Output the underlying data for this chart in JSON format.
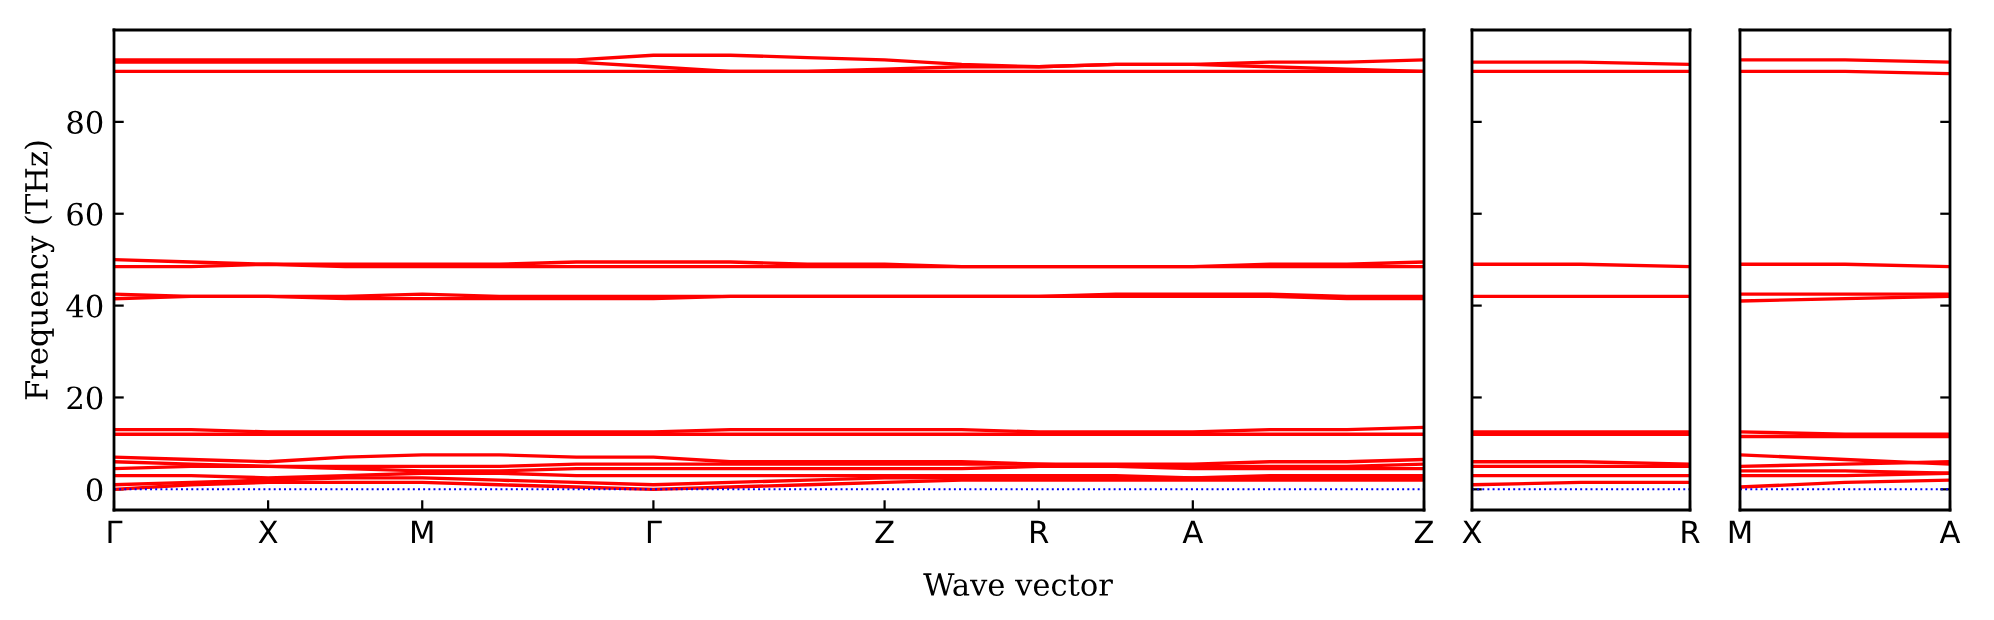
{
  "chart_data": [
    {
      "type": "line",
      "xlabel": "Wave vector",
      "ylabel": "Frequency (THz)",
      "ylim": [
        -4.5,
        100
      ],
      "categories": [
        "Γ",
        null,
        "X",
        null,
        "M",
        null,
        null,
        "Γ",
        null,
        null,
        "Z",
        null,
        "R",
        null,
        "A",
        null,
        null,
        "Z"
      ],
      "yticks": [
        0,
        20,
        40,
        60,
        80
      ],
      "line_style": "solid",
      "legend": false,
      "grid": false,
      "ref_lines": [
        {
          "axis": "y",
          "value": 0,
          "color": "#0000ff",
          "line_style": "dotted"
        }
      ],
      "series": [
        {
          "color": "#ff0000",
          "values": [
            93.5,
            93.5,
            93.5,
            93.5,
            93.5,
            93.5,
            93.5,
            94.5,
            94.5,
            94,
            93.5,
            92.5,
            92,
            92.5,
            92.5,
            93,
            93,
            93.5
          ]
        },
        {
          "color": "#ff0000",
          "values": [
            93,
            93,
            93,
            93,
            93,
            93,
            93,
            92,
            91,
            91,
            91.5,
            92,
            92,
            92.5,
            92.5,
            92,
            91.5,
            91
          ]
        },
        {
          "color": "#ff0000",
          "values": [
            91,
            91,
            91,
            91,
            91,
            91,
            91,
            91,
            91,
            91,
            91,
            91,
            91,
            91,
            91,
            91,
            91,
            91
          ]
        },
        {
          "color": "#ff0000",
          "values": [
            50,
            49.5,
            49,
            49,
            49,
            49,
            49.5,
            49.5,
            49.5,
            49,
            49,
            48.5,
            48.5,
            48.5,
            48.5,
            49,
            49,
            49.5
          ]
        },
        {
          "color": "#ff0000",
          "values": [
            48.5,
            48.5,
            49,
            48.5,
            48.5,
            48.5,
            48.5,
            48.5,
            48.5,
            48.5,
            48.5,
            48.5,
            48.5,
            48.5,
            48.5,
            48.5,
            48.5,
            48.5
          ]
        },
        {
          "color": "#ff0000",
          "values": [
            42.5,
            42,
            42,
            42,
            42.5,
            42,
            42,
            42,
            42,
            42,
            42,
            42,
            42,
            42.5,
            42.5,
            42.5,
            42,
            42
          ]
        },
        {
          "color": "#ff0000",
          "values": [
            41.5,
            42,
            42,
            41.5,
            41.5,
            41.5,
            41.5,
            41.5,
            42,
            42,
            42,
            42,
            42,
            42,
            42,
            42,
            41.5,
            41.5
          ]
        },
        {
          "color": "#ff0000",
          "values": [
            13,
            13,
            12.5,
            12.5,
            12.5,
            12.5,
            12.5,
            12.5,
            13,
            13,
            13,
            13,
            12.5,
            12.5,
            12.5,
            13,
            13,
            13.5
          ]
        },
        {
          "color": "#ff0000",
          "values": [
            12,
            12,
            12,
            12,
            12,
            12,
            12,
            12,
            12,
            12,
            12,
            12,
            12,
            12,
            12,
            12,
            12,
            12
          ]
        },
        {
          "color": "#ff0000",
          "values": [
            7,
            6.5,
            6,
            7,
            7.5,
            7.5,
            7,
            7,
            6,
            6,
            6,
            6,
            5.5,
            5.5,
            5.5,
            6,
            6,
            6.5
          ]
        },
        {
          "color": "#ff0000",
          "values": [
            6,
            5.5,
            5,
            5,
            5,
            5,
            5.5,
            5.5,
            5.5,
            5.5,
            5.5,
            5.5,
            5.5,
            5,
            5,
            5,
            5,
            5.5
          ]
        },
        {
          "color": "#ff0000",
          "values": [
            4.5,
            5,
            5,
            4.5,
            4,
            4,
            4.5,
            4.5,
            4.5,
            4.5,
            4.5,
            4.5,
            5,
            5,
            4.5,
            4.5,
            4.5,
            4.5
          ]
        },
        {
          "color": "#ff0000",
          "values": [
            3,
            3,
            2.5,
            3,
            3.5,
            3.5,
            3,
            3,
            3,
            3,
            3,
            3,
            3,
            3,
            2.5,
            3,
            3,
            3
          ]
        },
        {
          "color": "#ff0000",
          "values": [
            1,
            1.5,
            2,
            2.5,
            2.5,
            2,
            1.5,
            1,
            1.5,
            2,
            2.5,
            2.5,
            2.5,
            2.5,
            2.5,
            2.5,
            2.5,
            2.5
          ]
        },
        {
          "color": "#ff0000",
          "values": [
            0,
            1,
            1.5,
            1.5,
            1.5,
            1,
            0.5,
            0,
            0.5,
            1,
            1.5,
            2,
            2,
            2,
            2,
            2,
            2,
            2
          ]
        }
      ]
    },
    {
      "type": "line",
      "ylim": [
        -4.5,
        100
      ],
      "yticks": [
        0,
        20,
        40,
        60,
        80
      ],
      "tick_labels": "x",
      "categories": [
        "X",
        null,
        "R"
      ],
      "line_style": "solid",
      "legend": false,
      "grid": false,
      "ref_lines": [
        {
          "axis": "y",
          "value": 0,
          "color": "#0000ff",
          "line_style": "dotted"
        }
      ],
      "series": [
        {
          "color": "#ff0000",
          "values": [
            93,
            93,
            92.5
          ]
        },
        {
          "color": "#ff0000",
          "values": [
            91,
            91,
            91
          ]
        },
        {
          "color": "#ff0000",
          "values": [
            49,
            49,
            48.5
          ]
        },
        {
          "color": "#ff0000",
          "values": [
            42,
            42,
            42
          ]
        },
        {
          "color": "#ff0000",
          "values": [
            12.5,
            12.5,
            12.5
          ]
        },
        {
          "color": "#ff0000",
          "values": [
            12,
            12,
            12
          ]
        },
        {
          "color": "#ff0000",
          "values": [
            6,
            6,
            5.5
          ]
        },
        {
          "color": "#ff0000",
          "values": [
            5,
            5,
            5
          ]
        },
        {
          "color": "#ff0000",
          "values": [
            3,
            3,
            3
          ]
        },
        {
          "color": "#ff0000",
          "values": [
            1,
            1.5,
            1.5
          ]
        }
      ]
    },
    {
      "type": "line",
      "ylim": [
        -4.5,
        100
      ],
      "yticks": [
        0,
        20,
        40,
        60,
        80
      ],
      "tick_labels": "x",
      "categories": [
        "M",
        null,
        "A"
      ],
      "line_style": "solid",
      "legend": false,
      "grid": false,
      "ref_lines": [
        {
          "axis": "y",
          "value": 0,
          "color": "#0000ff",
          "line_style": "dotted"
        }
      ],
      "series": [
        {
          "color": "#ff0000",
          "values": [
            93.5,
            93.5,
            93
          ]
        },
        {
          "color": "#ff0000",
          "values": [
            91,
            91,
            90.5
          ]
        },
        {
          "color": "#ff0000",
          "values": [
            49,
            49,
            48.5
          ]
        },
        {
          "color": "#ff0000",
          "values": [
            42.5,
            42.5,
            42.5
          ]
        },
        {
          "color": "#ff0000",
          "values": [
            41,
            41.5,
            42
          ]
        },
        {
          "color": "#ff0000",
          "values": [
            12.5,
            12,
            12
          ]
        },
        {
          "color": "#ff0000",
          "values": [
            11.5,
            11.5,
            11.5
          ]
        },
        {
          "color": "#ff0000",
          "values": [
            7.5,
            6.5,
            5.5
          ]
        },
        {
          "color": "#ff0000",
          "values": [
            5,
            5.5,
            6
          ]
        },
        {
          "color": "#ff0000",
          "values": [
            4,
            4,
            3.5
          ]
        },
        {
          "color": "#ff0000",
          "values": [
            3,
            3,
            3.5
          ]
        },
        {
          "color": "#ff0000",
          "values": [
            0.5,
            1.5,
            2
          ]
        }
      ]
    }
  ]
}
